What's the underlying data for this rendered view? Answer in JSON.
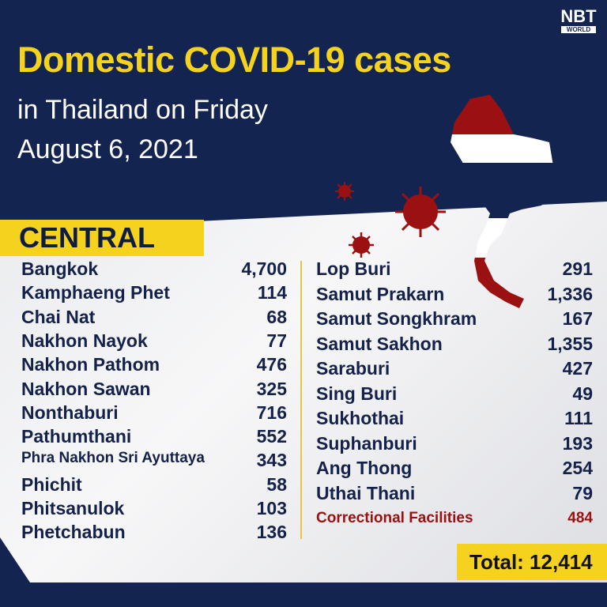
{
  "header": {
    "title": "Domestic COVID-19 cases",
    "subtitle_line1": "in Thailand on Friday",
    "subtitle_line2": "August 6, 2021"
  },
  "logo": {
    "main": "NBT",
    "sub": "WORLD"
  },
  "region": "CENTRAL",
  "left": [
    {
      "name": "Bangkok",
      "value": "4,700"
    },
    {
      "name": "Kamphaeng Phet",
      "value": "114"
    },
    {
      "name": "Chai Nat",
      "value": "68"
    },
    {
      "name": "Nakhon Nayok",
      "value": "77"
    },
    {
      "name": "Nakhon Pathom",
      "value": "476"
    },
    {
      "name": "Nakhon Sawan",
      "value": "325"
    },
    {
      "name": "Nonthaburi",
      "value": "716"
    },
    {
      "name": "Pathumthani",
      "value": "552"
    },
    {
      "name": "Phra Nakhon Sri Ayuttaya",
      "value": "343"
    },
    {
      "name": "Phichit",
      "value": "58"
    },
    {
      "name": "Phitsanulok",
      "value": "103"
    },
    {
      "name": "Phetchabun",
      "value": "136"
    }
  ],
  "right": [
    {
      "name": "Lop Buri",
      "value": "291"
    },
    {
      "name": "Samut Prakarn",
      "value": "1,336"
    },
    {
      "name": "Samut Songkhram",
      "value": "167"
    },
    {
      "name": "Samut Sakhon",
      "value": "1,355"
    },
    {
      "name": "Saraburi",
      "value": "427"
    },
    {
      "name": "Sing Buri",
      "value": "49"
    },
    {
      "name": "Sukhothai",
      "value": "111"
    },
    {
      "name": "Suphanburi",
      "value": "193"
    },
    {
      "name": "Ang Thong",
      "value": "254"
    },
    {
      "name": "Uthai Thani",
      "value": "79"
    },
    {
      "name": "Correctional Facilities",
      "value": "484",
      "highlight": true
    }
  ],
  "total": "Total: 12,414",
  "colors": {
    "navy": "#142450",
    "yellow": "#f5d21e",
    "red": "#9b1111",
    "text": "#14224a"
  },
  "icons": [
    "thailand-flag-map-icon",
    "virus-icon"
  ]
}
